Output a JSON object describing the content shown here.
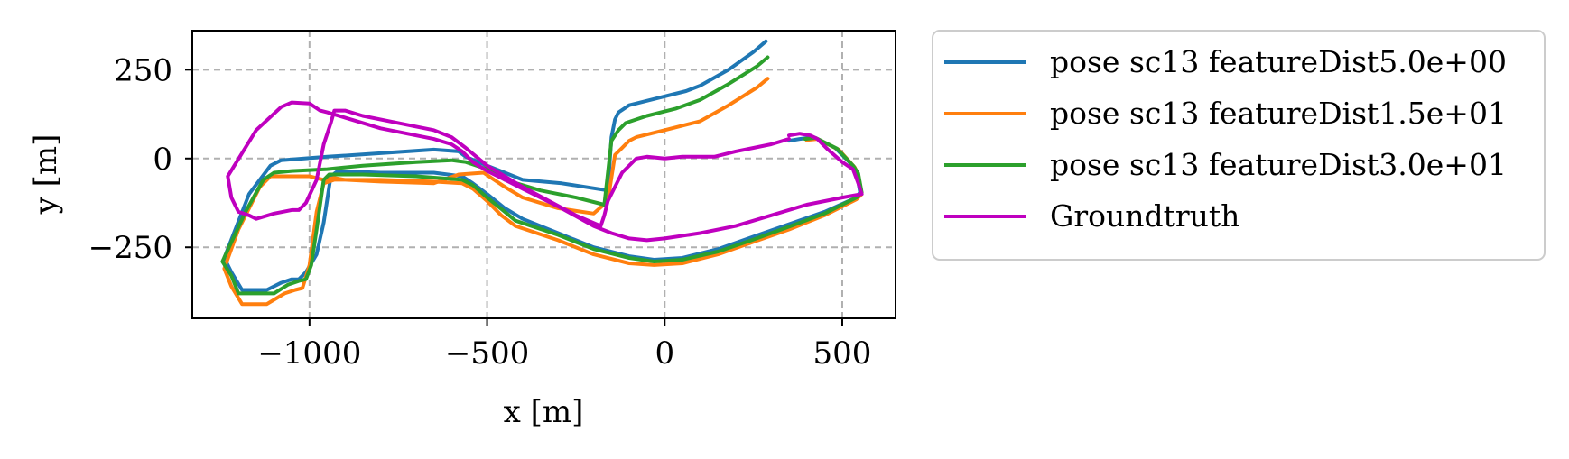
{
  "chart_data": {
    "type": "line",
    "xlabel": "x [m]",
    "ylabel": "y [m]",
    "xlim": [
      -1330,
      650
    ],
    "ylim": [
      -450,
      360
    ],
    "xticks": [
      -1000,
      -500,
      0,
      500
    ],
    "xtick_labels": [
      "−1000",
      "−500",
      "0",
      "500"
    ],
    "yticks": [
      250,
      0,
      -250
    ],
    "ytick_labels": [
      "250",
      "0",
      "−250"
    ],
    "grid": true,
    "legend_position": "outside-right",
    "series": [
      {
        "name": "pose sc13 featureDist5.0e+00",
        "color": "#1f77b4",
        "points": [
          [
            285,
            330
          ],
          [
            250,
            300
          ],
          [
            180,
            250
          ],
          [
            100,
            205
          ],
          [
            60,
            190
          ],
          [
            -20,
            170
          ],
          [
            -100,
            150
          ],
          [
            -130,
            130
          ],
          [
            -140,
            110
          ],
          [
            -150,
            60
          ],
          [
            -160,
            -90
          ],
          [
            -290,
            -70
          ],
          [
            -400,
            -60
          ],
          [
            -450,
            -40
          ],
          [
            -500,
            -20
          ],
          [
            -560,
            5
          ],
          [
            -580,
            20
          ],
          [
            -650,
            25
          ],
          [
            -800,
            15
          ],
          [
            -950,
            5
          ],
          [
            -1080,
            -5
          ],
          [
            -1110,
            -20
          ],
          [
            -1170,
            -100
          ],
          [
            -1240,
            -280
          ],
          [
            -1220,
            -320
          ],
          [
            -1190,
            -370
          ],
          [
            -1120,
            -370
          ],
          [
            -1080,
            -350
          ],
          [
            -1050,
            -340
          ],
          [
            -1030,
            -340
          ],
          [
            -1010,
            -320
          ],
          [
            -980,
            -270
          ],
          [
            -960,
            -180
          ],
          [
            -940,
            -50
          ],
          [
            -920,
            -35
          ],
          [
            -800,
            -40
          ],
          [
            -650,
            -40
          ],
          [
            -570,
            -50
          ],
          [
            -540,
            -70
          ],
          [
            -500,
            -100
          ],
          [
            -450,
            -140
          ],
          [
            -400,
            -170
          ],
          [
            -300,
            -210
          ],
          [
            -200,
            -250
          ],
          [
            -100,
            -275
          ],
          [
            -30,
            -285
          ],
          [
            50,
            -280
          ],
          [
            150,
            -255
          ],
          [
            250,
            -220
          ],
          [
            350,
            -185
          ],
          [
            450,
            -150
          ],
          [
            540,
            -110
          ],
          [
            550,
            -95
          ],
          [
            540,
            -40
          ],
          [
            530,
            -20
          ],
          [
            480,
            30
          ],
          [
            420,
            60
          ],
          [
            380,
            55
          ],
          [
            350,
            50
          ]
        ]
      },
      {
        "name": "pose sc13 featureDist1.5e+01",
        "color": "#ff7f0e",
        "points": [
          [
            290,
            225
          ],
          [
            260,
            200
          ],
          [
            180,
            150
          ],
          [
            100,
            105
          ],
          [
            0,
            80
          ],
          [
            -80,
            60
          ],
          [
            -100,
            50
          ],
          [
            -120,
            30
          ],
          [
            -140,
            10
          ],
          [
            -160,
            -120
          ],
          [
            -200,
            -155
          ],
          [
            -300,
            -140
          ],
          [
            -400,
            -110
          ],
          [
            -450,
            -80
          ],
          [
            -510,
            -40
          ],
          [
            -580,
            -45
          ],
          [
            -650,
            -70
          ],
          [
            -800,
            -65
          ],
          [
            -900,
            -60
          ],
          [
            -930,
            -55
          ],
          [
            -960,
            -60
          ],
          [
            -1000,
            -50
          ],
          [
            -1110,
            -50
          ],
          [
            -1140,
            -80
          ],
          [
            -1200,
            -200
          ],
          [
            -1240,
            -310
          ],
          [
            -1220,
            -360
          ],
          [
            -1190,
            -410
          ],
          [
            -1120,
            -410
          ],
          [
            -1070,
            -380
          ],
          [
            -1040,
            -370
          ],
          [
            -1020,
            -365
          ],
          [
            -1000,
            -300
          ],
          [
            -980,
            -150
          ],
          [
            -960,
            -70
          ],
          [
            -930,
            -60
          ],
          [
            -800,
            -60
          ],
          [
            -650,
            -65
          ],
          [
            -570,
            -70
          ],
          [
            -540,
            -85
          ],
          [
            -500,
            -120
          ],
          [
            -460,
            -160
          ],
          [
            -420,
            -190
          ],
          [
            -300,
            -230
          ],
          [
            -200,
            -270
          ],
          [
            -100,
            -295
          ],
          [
            -30,
            -300
          ],
          [
            50,
            -295
          ],
          [
            150,
            -270
          ],
          [
            250,
            -235
          ],
          [
            350,
            -200
          ],
          [
            450,
            -160
          ],
          [
            540,
            -115
          ],
          [
            555,
            -100
          ],
          [
            545,
            -45
          ],
          [
            535,
            -25
          ],
          [
            490,
            25
          ],
          [
            430,
            55
          ],
          [
            400,
            52
          ]
        ]
      },
      {
        "name": "pose sc13 featureDist3.0e+01",
        "color": "#2ca02c",
        "points": [
          [
            290,
            285
          ],
          [
            260,
            260
          ],
          [
            180,
            210
          ],
          [
            100,
            165
          ],
          [
            30,
            140
          ],
          [
            -50,
            120
          ],
          [
            -110,
            100
          ],
          [
            -130,
            80
          ],
          [
            -150,
            50
          ],
          [
            -170,
            -130
          ],
          [
            -250,
            -110
          ],
          [
            -350,
            -90
          ],
          [
            -450,
            -60
          ],
          [
            -500,
            -30
          ],
          [
            -560,
            -10
          ],
          [
            -600,
            -5
          ],
          [
            -700,
            -10
          ],
          [
            -850,
            -20
          ],
          [
            -950,
            -30
          ],
          [
            -1050,
            -35
          ],
          [
            -1100,
            -40
          ],
          [
            -1130,
            -60
          ],
          [
            -1180,
            -150
          ],
          [
            -1245,
            -290
          ],
          [
            -1220,
            -330
          ],
          [
            -1200,
            -380
          ],
          [
            -1100,
            -380
          ],
          [
            -1060,
            -355
          ],
          [
            -1030,
            -345
          ],
          [
            -1010,
            -340
          ],
          [
            -995,
            -300
          ],
          [
            -980,
            -200
          ],
          [
            -960,
            -60
          ],
          [
            -945,
            -45
          ],
          [
            -850,
            -45
          ],
          [
            -700,
            -50
          ],
          [
            -570,
            -60
          ],
          [
            -540,
            -75
          ],
          [
            -500,
            -110
          ],
          [
            -450,
            -150
          ],
          [
            -420,
            -175
          ],
          [
            -300,
            -215
          ],
          [
            -200,
            -255
          ],
          [
            -100,
            -280
          ],
          [
            -30,
            -290
          ],
          [
            50,
            -285
          ],
          [
            150,
            -262
          ],
          [
            250,
            -228
          ],
          [
            350,
            -192
          ],
          [
            450,
            -155
          ],
          [
            540,
            -110
          ],
          [
            555,
            -96
          ],
          [
            545,
            -42
          ],
          [
            532,
            -22
          ],
          [
            485,
            28
          ],
          [
            425,
            58
          ],
          [
            395,
            55
          ]
        ]
      },
      {
        "name": "Groundtruth",
        "color": "#bf00bf",
        "points": [
          [
            350,
            65
          ],
          [
            380,
            70
          ],
          [
            410,
            65
          ],
          [
            430,
            55
          ],
          [
            460,
            25
          ],
          [
            500,
            -10
          ],
          [
            530,
            -30
          ],
          [
            545,
            -70
          ],
          [
            555,
            -100
          ],
          [
            500,
            -110
          ],
          [
            400,
            -130
          ],
          [
            300,
            -160
          ],
          [
            200,
            -190
          ],
          [
            100,
            -210
          ],
          [
            0,
            -225
          ],
          [
            -50,
            -230
          ],
          [
            -100,
            -225
          ],
          [
            -150,
            -210
          ],
          [
            -200,
            -190
          ],
          [
            -300,
            -135
          ],
          [
            -350,
            -110
          ],
          [
            -400,
            -85
          ],
          [
            -460,
            -55
          ],
          [
            -500,
            -35
          ],
          [
            -540,
            -10
          ],
          [
            -570,
            20
          ],
          [
            -600,
            40
          ],
          [
            -650,
            55
          ],
          [
            -800,
            85
          ],
          [
            -950,
            130
          ],
          [
            -970,
            135
          ],
          [
            -1000,
            155
          ],
          [
            -1050,
            158
          ],
          [
            -1080,
            145
          ],
          [
            -1150,
            80
          ],
          [
            -1230,
            -50
          ],
          [
            -1220,
            -110
          ],
          [
            -1200,
            -150
          ],
          [
            -1170,
            -160
          ],
          [
            -1150,
            -170
          ],
          [
            -1100,
            -155
          ],
          [
            -1050,
            -145
          ],
          [
            -1030,
            -145
          ],
          [
            -1010,
            -125
          ],
          [
            -980,
            -60
          ],
          [
            -960,
            40
          ],
          [
            -940,
            100
          ],
          [
            -930,
            135
          ],
          [
            -900,
            135
          ],
          [
            -850,
            120
          ],
          [
            -750,
            100
          ],
          [
            -650,
            80
          ],
          [
            -600,
            60
          ],
          [
            -560,
            30
          ],
          [
            -500,
            -20
          ],
          [
            -400,
            -80
          ],
          [
            -250,
            -160
          ],
          [
            -180,
            -190
          ],
          [
            -170,
            -160
          ],
          [
            -160,
            -120
          ],
          [
            -120,
            -40
          ],
          [
            -80,
            0
          ],
          [
            -50,
            5
          ],
          [
            0,
            0
          ],
          [
            50,
            5
          ],
          [
            100,
            5
          ],
          [
            140,
            5
          ],
          [
            200,
            20
          ],
          [
            250,
            30
          ],
          [
            300,
            40
          ],
          [
            350,
            55
          ]
        ]
      }
    ]
  }
}
